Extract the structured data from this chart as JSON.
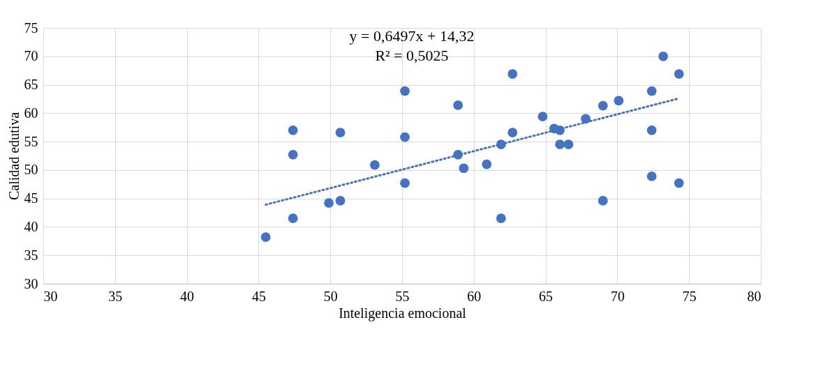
{
  "chart_data": {
    "type": "scatter",
    "xlabel": "Inteligencia emocional",
    "ylabel": "Calidad edutiva",
    "xlim": [
      30,
      80
    ],
    "xticks": [
      30,
      35,
      40,
      45,
      50,
      55,
      60,
      65,
      70,
      75,
      80
    ],
    "ylim": [
      30,
      75
    ],
    "yticks": [
      30,
      35,
      40,
      45,
      50,
      55,
      60,
      65,
      70,
      75
    ],
    "grid": true,
    "legend": false,
    "annotations": [
      "y = 0,6497x + 14,32",
      "R² = 0,5025"
    ],
    "series": [
      {
        "color": "#4472c4",
        "marker": "circle",
        "x": [
          45.5,
          47.4,
          47.4,
          47.4,
          49.9,
          50.7,
          50.7,
          53.1,
          55.2,
          55.2,
          55.2,
          58.9,
          58.9,
          59.3,
          60.9,
          61.9,
          61.9,
          62.7,
          62.7,
          64.8,
          65.6,
          66.0,
          66.0,
          66.6,
          67.8,
          69.0,
          69.0,
          70.1,
          72.4,
          72.4,
          72.4,
          73.2,
          74.3,
          74.3
        ],
        "values": [
          38.2,
          41.5,
          52.7,
          57.0,
          44.2,
          44.6,
          56.6,
          50.9,
          47.7,
          55.8,
          63.9,
          52.7,
          61.4,
          50.3,
          51.0,
          41.5,
          54.5,
          56.6,
          66.9,
          59.4,
          57.3,
          57.0,
          54.5,
          54.5,
          59.0,
          61.3,
          44.6,
          62.2,
          63.9,
          57.0,
          48.9,
          70.0,
          66.9,
          47.7
        ]
      },
      {
        "type": "line",
        "color": "#4472c4",
        "line_style": "dotted",
        "marker": "none",
        "x": [
          45.5,
          74.3
        ],
        "values": [
          43.9,
          62.6
        ]
      }
    ]
  }
}
